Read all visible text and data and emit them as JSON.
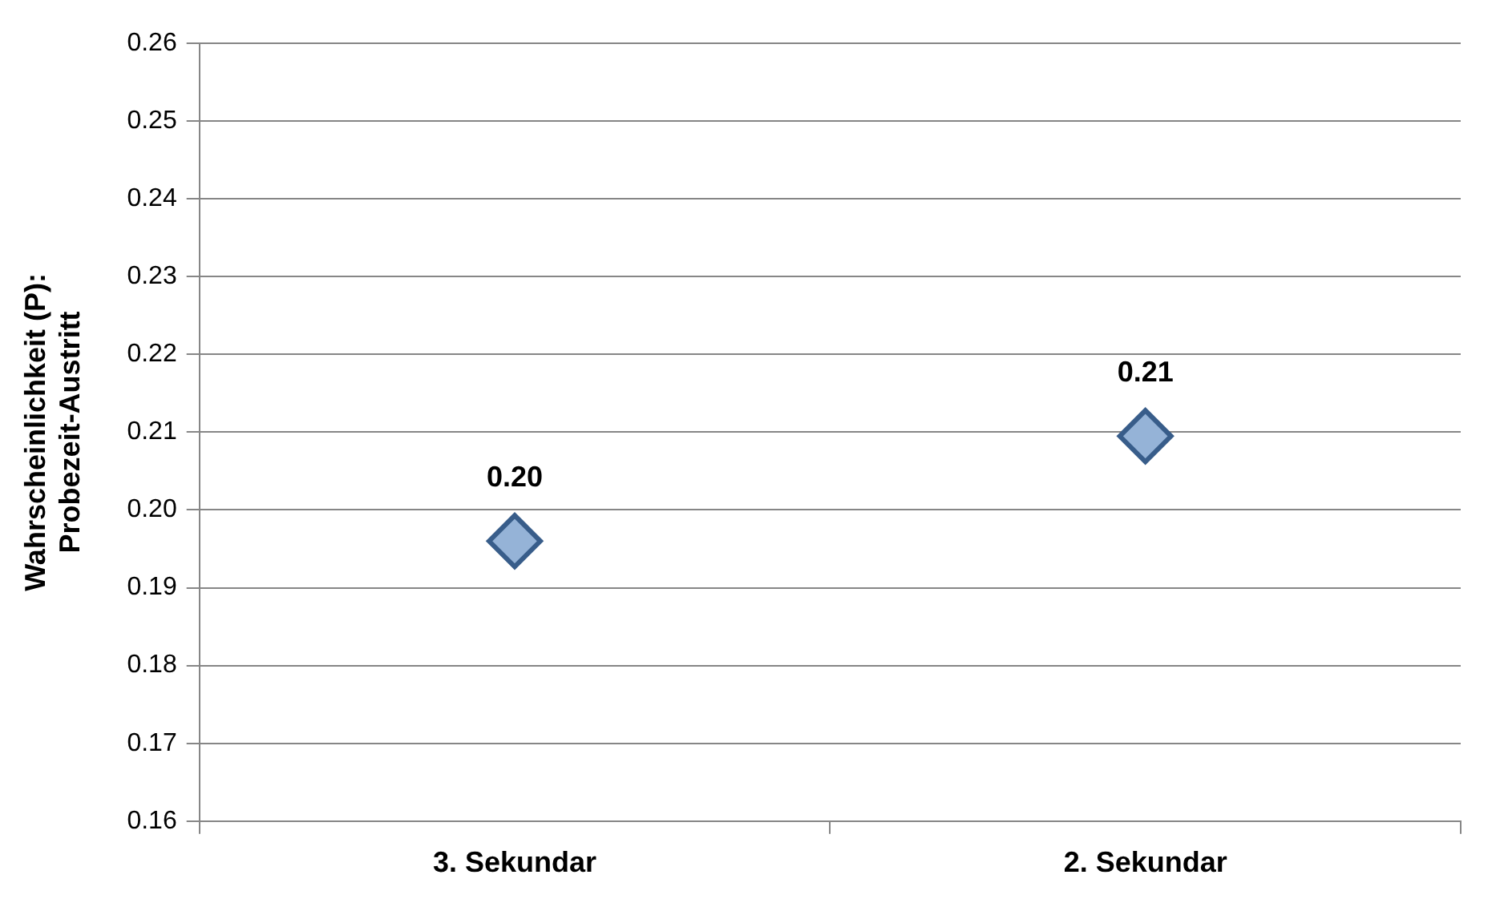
{
  "chart_data": {
    "type": "scatter",
    "ylabel": "Wahrscheinlichkeit (P):\nProbezeit-Austritt",
    "categories": [
      "3. Sekundar",
      "2. Sekundar"
    ],
    "series": [
      {
        "color": "#95b3d7",
        "values": [
          0.196,
          0.2095
        ],
        "value_labels": [
          "0.20",
          "0.21"
        ]
      }
    ],
    "ylim": [
      0.16,
      0.26
    ],
    "yticks": [
      0.16,
      0.17,
      0.18,
      0.19,
      {
        "value": 0.2,
        "label": "0.20"
      },
      0.21,
      0.22,
      0.23,
      0.24,
      0.25,
      0.26
    ],
    "grid": "y",
    "marker": "diamond",
    "legend": false
  }
}
